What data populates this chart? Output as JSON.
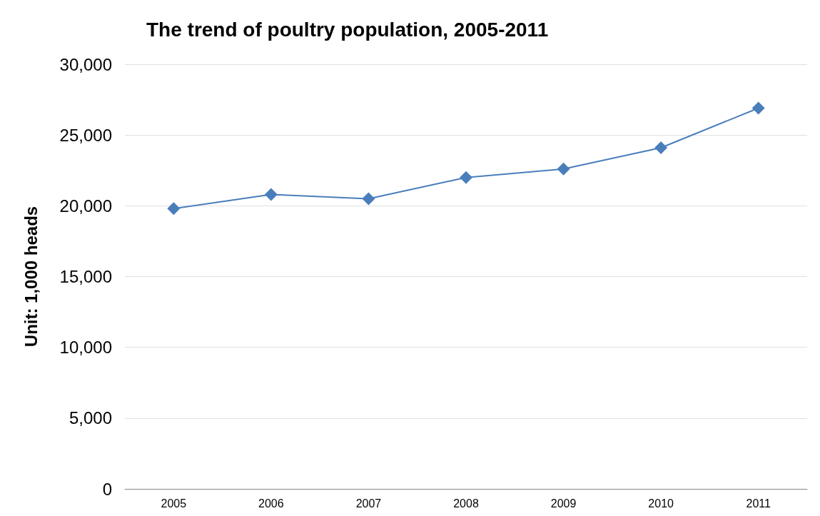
{
  "chart_data": {
    "type": "line",
    "title": "The trend of poultry population, 2005-2011",
    "ylabel": "Unit: 1,000 heads",
    "categories": [
      "2005",
      "2006",
      "2007",
      "2008",
      "2009",
      "2010",
      "2011"
    ],
    "series": [
      {
        "color": "#4a7ebb",
        "values": [
          19800,
          20800,
          20500,
          22000,
          22600,
          24100,
          26900
        ]
      }
    ],
    "ylim": [
      0,
      30000
    ],
    "yticks": [
      0,
      {
        "value": 5000,
        "label": "5,000"
      },
      {
        "value": 10000,
        "label": "10,000"
      },
      {
        "value": 15000,
        "label": "15,000"
      },
      {
        "value": 20000,
        "label": "20,000"
      },
      {
        "value": 25000,
        "label": "25,000"
      },
      {
        "value": 30000,
        "label": "30,000"
      }
    ],
    "grid": "y",
    "marker": "diamond",
    "line_style": "solid"
  }
}
